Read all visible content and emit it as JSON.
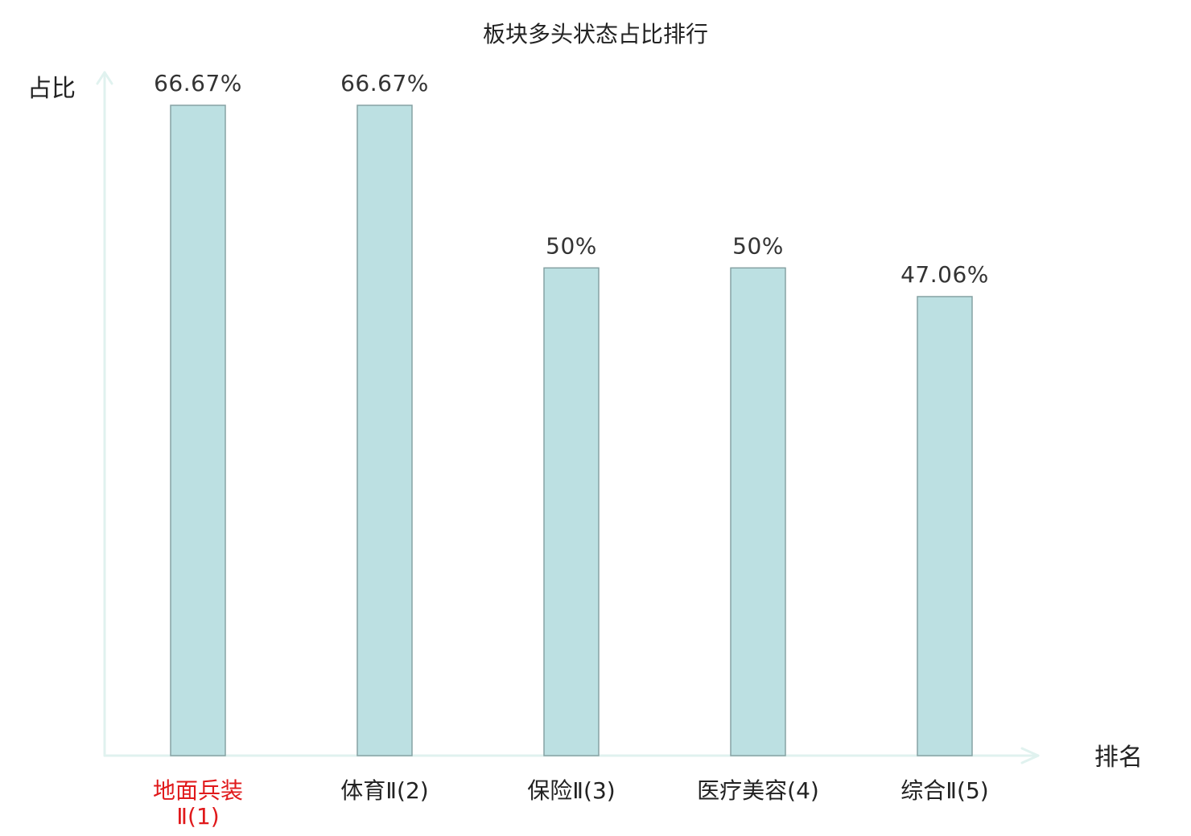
{
  "chart_data": {
    "type": "bar",
    "title": "板块多头状态占比排行",
    "ylabel": "占比",
    "xlabel": "排名",
    "categories": [
      [
        "地面兵装",
        "Ⅱ(1)"
      ],
      [
        "体育Ⅱ(2)"
      ],
      [
        "保险Ⅱ(3)"
      ],
      [
        "医疗美容(4)"
      ],
      [
        "综合Ⅱ(5)"
      ]
    ],
    "values": [
      66.67,
      66.67,
      50,
      50,
      47.06
    ],
    "value_labels": [
      "66.67%",
      "66.67%",
      "50%",
      "50%",
      "47.06%"
    ],
    "highlight_index": 0,
    "ylim": [
      0,
      66.67
    ],
    "grid": false,
    "legend": "none"
  },
  "colors": {
    "bar_fill": "#bce0e2",
    "bar_stroke": "#86a2a4",
    "axis": "#e0f2ef",
    "highlight_label": "#e0191b",
    "normal_label": "#222222"
  }
}
